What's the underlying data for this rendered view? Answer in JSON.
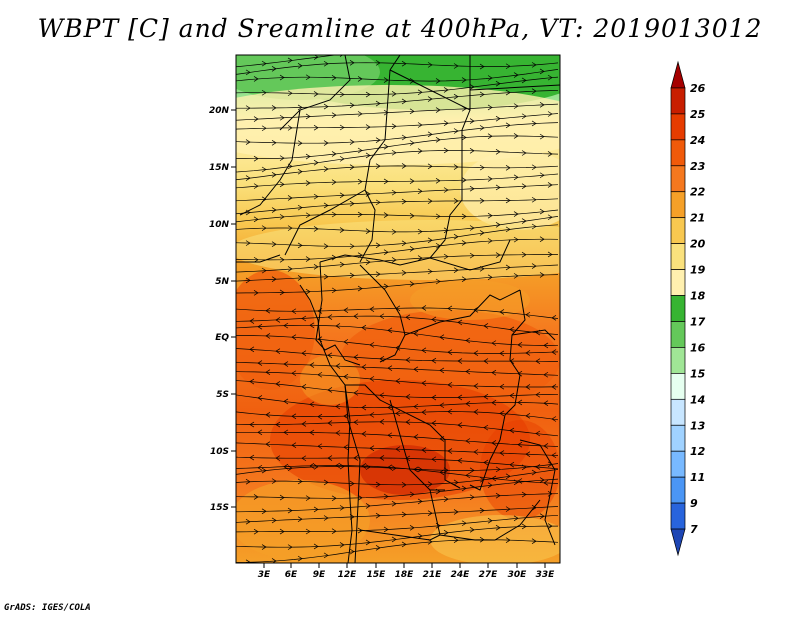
{
  "title": "WBPT [C] and Sreamline at 400hPa, VT: 2019013012",
  "credit": "GrADS: IGES/COLA",
  "lat_ticks": [
    "20N",
    "15N",
    "10N",
    "5N",
    "EQ",
    "5S",
    "10S",
    "15S"
  ],
  "lon_ticks": [
    "3E",
    "6E",
    "9E",
    "12E",
    "15E",
    "18E",
    "21E",
    "24E",
    "27E",
    "30E",
    "33E"
  ],
  "colorbar": {
    "labels": [
      "26",
      "25",
      "24",
      "23",
      "22",
      "21",
      "20",
      "19",
      "18",
      "17",
      "16",
      "15",
      "14",
      "13",
      "12",
      "11",
      "9",
      "7"
    ],
    "colors": [
      "#a50000",
      "#c81e00",
      "#e63c00",
      "#f05a0a",
      "#f5781e",
      "#f5a028",
      "#f8c850",
      "#fae17d",
      "#fff0af",
      "#37b432",
      "#64c85a",
      "#a0e696",
      "#e6fff0",
      "#c8e6ff",
      "#a0d2ff",
      "#78b9ff",
      "#4b96f5",
      "#2864dc",
      "#1e46b4"
    ]
  }
}
